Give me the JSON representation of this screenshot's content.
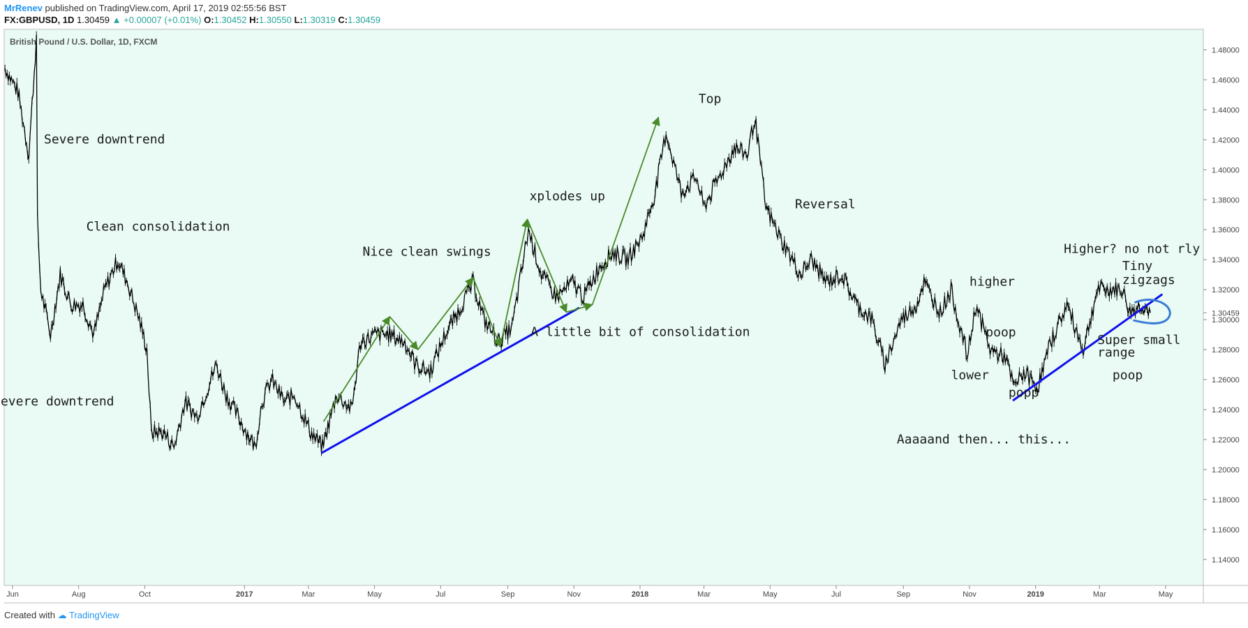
{
  "header": {
    "author": "MrRenev",
    "published": "published on TradingView.com, April 17, 2019 02:55:56 BST",
    "symbol": "FX:GBPUSD, 1D",
    "last": "1.30459",
    "change": "▲ +0.00007 (+0.01%)",
    "open_label": "O:",
    "open": "1.30452",
    "high_label": "H:",
    "high": "1.30550",
    "low_label": "L:",
    "low": "1.30319",
    "close_label": "C:",
    "close": "1.30459"
  },
  "footer": {
    "created_with": "Created with",
    "brand": "TradingView"
  },
  "colors": {
    "background": "#e9fbf4",
    "candles": "#000000",
    "trendline": "#1010ee",
    "arrows": "#4a8a2a",
    "circle": "#3a7bd5",
    "text": "#1a1a1a"
  },
  "chart_data": {
    "type": "line",
    "title": "British Pound / U.S. Dollar, 1D, FXCM",
    "ylim": [
      1.125,
      1.49
    ],
    "y_ticks": [
      "1.48000",
      "1.46000",
      "1.44000",
      "1.42000",
      "1.40000",
      "1.38000",
      "1.36000",
      "1.34000",
      "1.32000",
      "1.30000",
      "1.28000",
      "1.26000",
      "1.24000",
      "1.22000",
      "1.20000",
      "1.18000",
      "1.16000",
      "1.14000"
    ],
    "last_price_label": "1.30459",
    "x_ticks": [
      {
        "label": "Jun",
        "date": "2016-06-01",
        "bold": false
      },
      {
        "label": "Aug",
        "date": "2016-08-01",
        "bold": false
      },
      {
        "label": "Oct",
        "date": "2016-10-01",
        "bold": false
      },
      {
        "label": "2017",
        "date": "2017-01-01",
        "bold": true
      },
      {
        "label": "Mar",
        "date": "2017-03-01",
        "bold": false
      },
      {
        "label": "May",
        "date": "2017-05-01",
        "bold": false
      },
      {
        "label": "Jul",
        "date": "2017-07-01",
        "bold": false
      },
      {
        "label": "Sep",
        "date": "2017-09-01",
        "bold": false
      },
      {
        "label": "Nov",
        "date": "2017-11-01",
        "bold": false
      },
      {
        "label": "2018",
        "date": "2018-01-01",
        "bold": true
      },
      {
        "label": "Mar",
        "date": "2018-03-01",
        "bold": false
      },
      {
        "label": "May",
        "date": "2018-05-01",
        "bold": false
      },
      {
        "label": "Jul",
        "date": "2018-07-01",
        "bold": false
      },
      {
        "label": "Sep",
        "date": "2018-09-01",
        "bold": false
      },
      {
        "label": "Nov",
        "date": "2018-11-01",
        "bold": false
      },
      {
        "label": "2019",
        "date": "2019-01-01",
        "bold": true
      },
      {
        "label": "Mar",
        "date": "2019-03-01",
        "bold": false
      },
      {
        "label": "May",
        "date": "2019-05-01",
        "bold": false
      }
    ],
    "series": [
      {
        "values": [
          [
            "2016-05-25",
            1.468
          ],
          [
            "2016-06-06",
            1.452
          ],
          [
            "2016-06-16",
            1.41
          ],
          [
            "2016-06-23",
            1.488
          ],
          [
            "2016-06-24",
            1.365
          ],
          [
            "2016-06-27",
            1.32
          ],
          [
            "2016-07-06",
            1.29
          ],
          [
            "2016-07-15",
            1.33
          ],
          [
            "2016-07-25",
            1.31
          ],
          [
            "2016-08-05",
            1.31
          ],
          [
            "2016-08-15",
            1.29
          ],
          [
            "2016-08-25",
            1.32
          ],
          [
            "2016-09-06",
            1.34
          ],
          [
            "2016-09-15",
            1.325
          ],
          [
            "2016-09-26",
            1.3
          ],
          [
            "2016-10-03",
            1.28
          ],
          [
            "2016-10-07",
            1.225
          ],
          [
            "2016-10-18",
            1.225
          ],
          [
            "2016-10-28",
            1.215
          ],
          [
            "2016-11-07",
            1.245
          ],
          [
            "2016-11-18",
            1.235
          ],
          [
            "2016-12-06",
            1.27
          ],
          [
            "2016-12-15",
            1.25
          ],
          [
            "2016-12-30",
            1.23
          ],
          [
            "2017-01-11",
            1.215
          ],
          [
            "2017-01-17",
            1.245
          ],
          [
            "2017-01-26",
            1.26
          ],
          [
            "2017-02-07",
            1.245
          ],
          [
            "2017-02-16",
            1.25
          ],
          [
            "2017-03-03",
            1.225
          ],
          [
            "2017-03-14",
            1.215
          ],
          [
            "2017-03-27",
            1.25
          ],
          [
            "2017-04-10",
            1.24
          ],
          [
            "2017-04-18",
            1.285
          ],
          [
            "2017-05-02",
            1.29
          ],
          [
            "2017-05-15",
            1.29
          ],
          [
            "2017-05-29",
            1.285
          ],
          [
            "2017-06-08",
            1.27
          ],
          [
            "2017-06-21",
            1.265
          ],
          [
            "2017-07-05",
            1.29
          ],
          [
            "2017-07-17",
            1.305
          ],
          [
            "2017-07-31",
            1.325
          ],
          [
            "2017-08-10",
            1.3
          ],
          [
            "2017-08-24",
            1.285
          ],
          [
            "2017-09-05",
            1.295
          ],
          [
            "2017-09-20",
            1.36
          ],
          [
            "2017-10-02",
            1.33
          ],
          [
            "2017-10-16",
            1.315
          ],
          [
            "2017-10-31",
            1.325
          ],
          [
            "2017-11-10",
            1.315
          ],
          [
            "2017-11-24",
            1.335
          ],
          [
            "2017-12-07",
            1.345
          ],
          [
            "2017-12-20",
            1.34
          ],
          [
            "2018-01-03",
            1.355
          ],
          [
            "2018-01-15",
            1.385
          ],
          [
            "2018-01-25",
            1.425
          ],
          [
            "2018-02-08",
            1.385
          ],
          [
            "2018-02-22",
            1.395
          ],
          [
            "2018-03-01",
            1.375
          ],
          [
            "2018-03-15",
            1.395
          ],
          [
            "2018-03-29",
            1.415
          ],
          [
            "2018-04-10",
            1.41
          ],
          [
            "2018-04-17",
            1.435
          ],
          [
            "2018-04-27",
            1.375
          ],
          [
            "2018-05-10",
            1.355
          ],
          [
            "2018-05-29",
            1.33
          ],
          [
            "2018-06-08",
            1.34
          ],
          [
            "2018-06-22",
            1.325
          ],
          [
            "2018-07-06",
            1.33
          ],
          [
            "2018-07-20",
            1.31
          ],
          [
            "2018-08-03",
            1.3
          ],
          [
            "2018-08-15",
            1.27
          ],
          [
            "2018-08-30",
            1.3
          ],
          [
            "2018-09-13",
            1.31
          ],
          [
            "2018-09-20",
            1.325
          ],
          [
            "2018-10-05",
            1.305
          ],
          [
            "2018-10-15",
            1.32
          ],
          [
            "2018-10-30",
            1.275
          ],
          [
            "2018-11-07",
            1.31
          ],
          [
            "2018-11-20",
            1.28
          ],
          [
            "2018-12-04",
            1.275
          ],
          [
            "2018-12-12",
            1.255
          ],
          [
            "2018-12-21",
            1.265
          ],
          [
            "2019-01-03",
            1.255
          ],
          [
            "2019-01-15",
            1.285
          ],
          [
            "2019-01-30",
            1.31
          ],
          [
            "2019-02-14",
            1.28
          ],
          [
            "2019-02-27",
            1.32
          ],
          [
            "2019-03-12",
            1.32
          ],
          [
            "2019-03-22",
            1.32
          ],
          [
            "2019-03-29",
            1.305
          ],
          [
            "2019-04-09",
            1.31
          ],
          [
            "2019-04-17",
            1.30459
          ]
        ]
      }
    ],
    "trendlines": [
      {
        "points": [
          [
            "2017-03-13",
            1.211
          ],
          [
            "2017-11-06",
            1.308
          ]
        ]
      },
      {
        "points": [
          [
            "2018-12-11",
            1.246
          ],
          [
            "2019-04-28",
            1.317
          ]
        ]
      }
    ],
    "arrows": [
      {
        "points": [
          [
            "2017-03-15",
            1.232
          ],
          [
            "2017-05-15",
            1.302
          ],
          [
            "2017-06-10",
            1.28
          ],
          [
            "2017-07-31",
            1.328
          ],
          [
            "2017-08-25",
            1.282
          ],
          [
            "2017-09-19",
            1.367
          ],
          [
            "2017-10-25",
            1.305
          ],
          [
            "2017-11-18",
            1.31
          ],
          [
            "2018-01-18",
            1.435
          ]
        ]
      }
    ],
    "annotations": [
      {
        "text": "Severe downtrend",
        "x": "2016-06-30",
        "y": 1.4175
      },
      {
        "text": "Clean consolidation",
        "x": "2016-08-08",
        "y": 1.3593
      },
      {
        "text": "Severe downtrend",
        "x": "2016-05-14",
        "y": 1.2427
      },
      {
        "text": "Nice clean swings",
        "x": "2017-04-20",
        "y": 1.3426
      },
      {
        "text": "xplodes up",
        "x": "2017-09-21",
        "y": 1.3796
      },
      {
        "text": "Top",
        "x": "2018-02-24",
        "y": 1.4445
      },
      {
        "text": "Reversal",
        "x": "2018-05-24",
        "y": 1.3744
      },
      {
        "text": "A little bit of consolidation",
        "x": "2017-09-22",
        "y": 1.2892
      },
      {
        "text": "Higher? no not rly",
        "x": "2019-01-27",
        "y": 1.3446
      },
      {
        "text": "Tiny",
        "x": "2019-03-22",
        "y": 1.3332
      },
      {
        "text": "zigzags",
        "x": "2019-03-22",
        "y": 1.3238
      },
      {
        "text": "higher",
        "x": "2018-11-01",
        "y": 1.3227
      },
      {
        "text": "poop",
        "x": "2018-11-16",
        "y": 1.2889
      },
      {
        "text": "Super small",
        "x": "2019-02-27",
        "y": 1.2838
      },
      {
        "text": "range",
        "x": "2019-02-27",
        "y": 1.2754
      },
      {
        "text": "lower",
        "x": "2018-10-15",
        "y": 1.2603
      },
      {
        "text": "poop",
        "x": "2019-03-13",
        "y": 1.2603
      },
      {
        "text": "popp",
        "x": "2018-12-07",
        "y": 1.2485
      },
      {
        "text": "Aaaaand then... this...",
        "x": "2018-08-26",
        "y": 1.2175
      }
    ],
    "circle": {
      "x": "2019-04-16",
      "y": 1.306
    }
  }
}
